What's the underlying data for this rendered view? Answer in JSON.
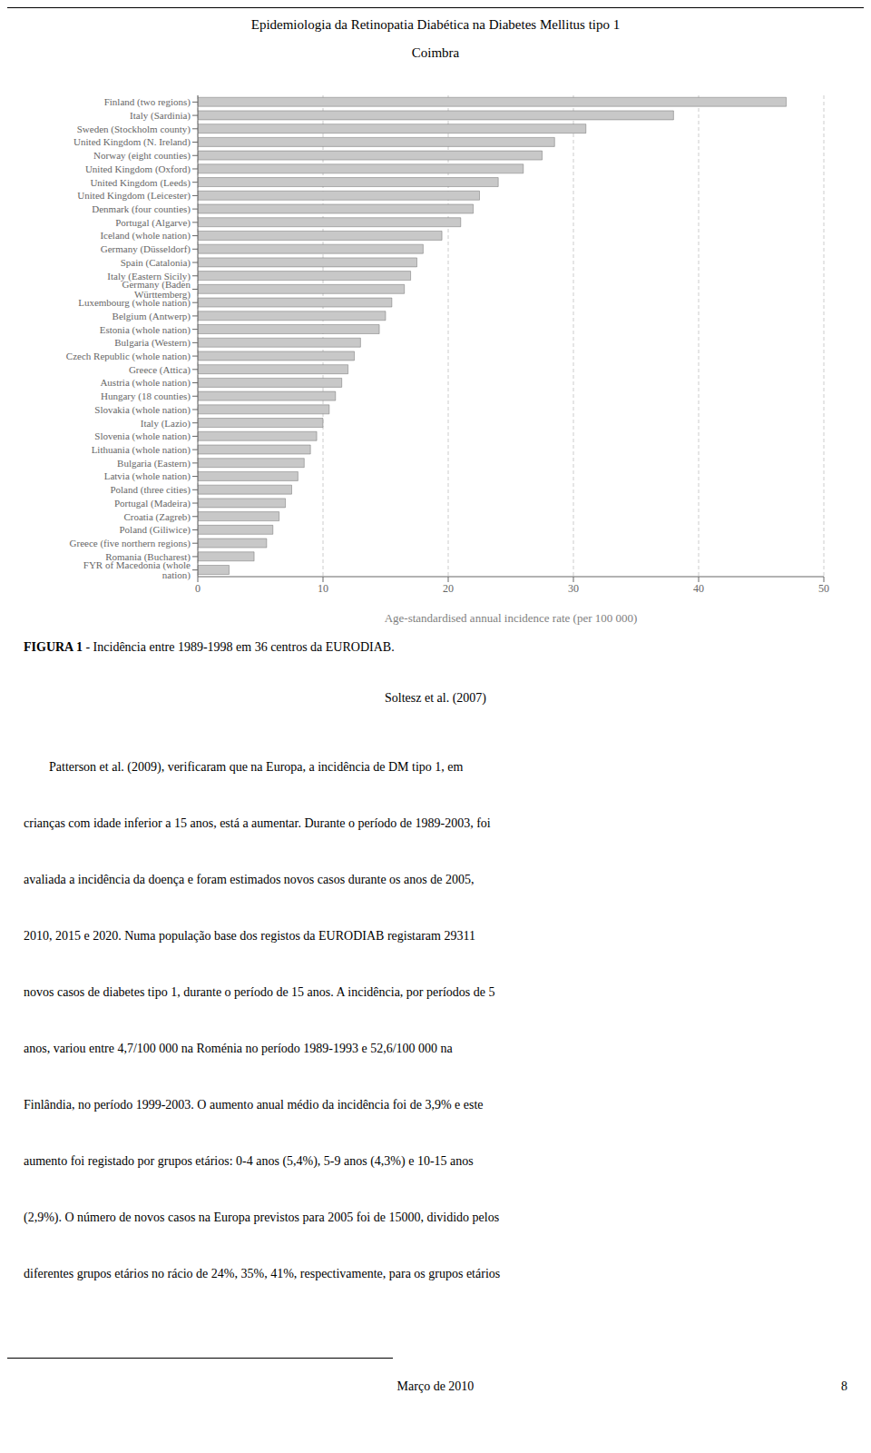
{
  "chart_data": {
    "type": "bar",
    "orientation": "horizontal",
    "title": "Epidemiologia da Retinopatia Diabética na Diabetes Mellitus tipo 1",
    "subtitle": "Coimbra",
    "categories": [
      "Finland (two regions)",
      "Italy (Sardinia)",
      "Sweden (Stockholm county)",
      "United Kingdom (N. Ireland)",
      "Norway (eight counties)",
      "United Kingdom (Oxford)",
      "United Kingdom (Leeds)",
      "United Kingdom (Leicester)",
      "Denmark (four counties)",
      "Portugal (Algarve)",
      "Iceland (whole nation)",
      "Germany (Düsseldorf)",
      "Spain (Catalonia)",
      "Italy (Eastern Sicily)",
      "Germany (Baden Württemberg)",
      "Luxembourg (whole nation)",
      "Belgium (Antwerp)",
      "Estonia (whole nation)",
      "Bulgaria (Western)",
      "Czech Republic (whole nation)",
      "Greece (Attica)",
      "Austria (whole nation)",
      "Hungary (18 counties)",
      "Slovakia (whole nation)",
      "Italy (Lazio)",
      "Slovenia (whole nation)",
      "Lithuania (whole nation)",
      "Bulgaria (Eastern)",
      "Latvia (whole nation)",
      "Poland (three cities)",
      "Portugal (Madeira)",
      "Croatia (Zagreb)",
      "Poland (Giliwice)",
      "Greece (five northern regions)",
      "Romania (Bucharest)",
      "FYR of Macedonia (whole nation)"
    ],
    "values": [
      47.0,
      38.0,
      31.0,
      28.5,
      27.5,
      26.0,
      24.0,
      22.5,
      22.0,
      21.0,
      19.5,
      18.0,
      17.5,
      17.0,
      16.5,
      15.5,
      15.0,
      14.5,
      13.0,
      12.5,
      12.0,
      11.5,
      11.0,
      10.5,
      10.0,
      9.5,
      9.0,
      8.5,
      8.0,
      7.5,
      7.0,
      6.5,
      6.0,
      5.5,
      4.5,
      2.5
    ],
    "color": "#c8c8c8",
    "xlabel": "Age-standardised annual incidence rate (per 100 000)",
    "xlim": [
      0,
      50
    ],
    "xticks": [
      0,
      10,
      20,
      30,
      40,
      50
    ],
    "grid": true,
    "annotations": [
      "FIGURA 1",
      " - Incidência entre 1989-1998 em 36 centros da EURODIAB.",
      "Soltesz et al. (2007)",
      "        Patterson et al. (2009), verificaram que na Europa, a incidência de DM tipo 1, em",
      "crianças com idade inferior a 15 anos, está a aumentar. Durante o período de 1989-2003, foi",
      "avaliada a incidência da doença e foram estimados novos casos durante os anos de 2005,",
      "2010, 2015 e 2020. Numa população base dos registos da EURODIAB registaram 29311",
      "novos casos de diabetes tipo 1, durante o período de 15 anos. A incidência, por períodos de 5",
      "anos, variou entre 4,7/100 000 na Roménia no período 1989-1993 e 52,6/100 000 na",
      "Finlândia, no período 1999-2003. O aumento anual médio da incidência foi de 3,9% e este",
      "aumento foi registado por grupos etários: 0-4 anos (5,4%), 5-9 anos (4,3%) e 10-15 anos",
      "(2,9%). O número de novos casos na Europa previstos para 2005 foi de 15000, dividido pelos",
      "diferentes grupos etários no rácio de 24%, 35%, 41%, respectivamente, para os grupos etários",
      "Março de 2010",
      "8"
    ]
  }
}
